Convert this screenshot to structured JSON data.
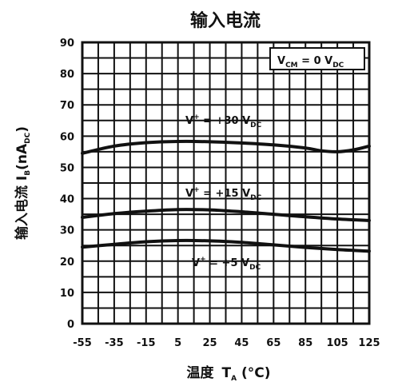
{
  "chart_data": {
    "type": "line",
    "title": "输入电流",
    "ylabel": {
      "main": "输入电流 I",
      "sub": "B",
      "rest": "(nA",
      "unit_sub": "DC",
      "close": ")"
    },
    "xlabel": {
      "main": "温度",
      "var": "T",
      "sub": "A",
      "rest": "(°C)"
    },
    "x_ticks": [
      -55,
      -35,
      -15,
      5,
      25,
      45,
      65,
      85,
      105,
      125
    ],
    "y_ticks": [
      0,
      10,
      20,
      30,
      40,
      50,
      60,
      70,
      80,
      90
    ],
    "xlim": [
      -55,
      125
    ],
    "ylim": [
      0,
      90
    ],
    "grid": true,
    "condition": {
      "prefix": "V",
      "sub": "CM",
      "mid": " = 0 V",
      "unit_sub": "DC"
    },
    "series": [
      {
        "name": "V+ = +30 VDC",
        "label": {
          "pre": "V",
          "sup": "+",
          "post": " = +30 V",
          "sub": "DC"
        },
        "x": [
          -55,
          -35,
          -15,
          5,
          25,
          45,
          65,
          85,
          95,
          105,
          115,
          125
        ],
        "y": [
          54.5,
          56.8,
          57.9,
          58.3,
          58.2,
          57.8,
          57.2,
          56.2,
          55.3,
          55.0,
          55.6,
          56.8
        ]
      },
      {
        "name": "V+ = +15 VDC",
        "label": {
          "pre": "V",
          "sup": "+",
          "post": " = +15 V",
          "sub": "DC"
        },
        "x": [
          -55,
          -35,
          -15,
          5,
          25,
          45,
          65,
          85,
          105,
          125
        ],
        "y": [
          34.0,
          35.2,
          36.0,
          36.5,
          36.4,
          35.8,
          35.0,
          34.2,
          33.5,
          33.0
        ]
      },
      {
        "name": "V+ = +5 VDC",
        "label": {
          "pre": "V",
          "sup": "+",
          "post": " = +5 V",
          "sub": "DC"
        },
        "x": [
          -55,
          -35,
          -15,
          5,
          25,
          45,
          65,
          85,
          105,
          125
        ],
        "y": [
          24.5,
          25.4,
          26.2,
          26.6,
          26.5,
          26.0,
          25.2,
          24.4,
          23.7,
          23.2
        ]
      }
    ]
  }
}
